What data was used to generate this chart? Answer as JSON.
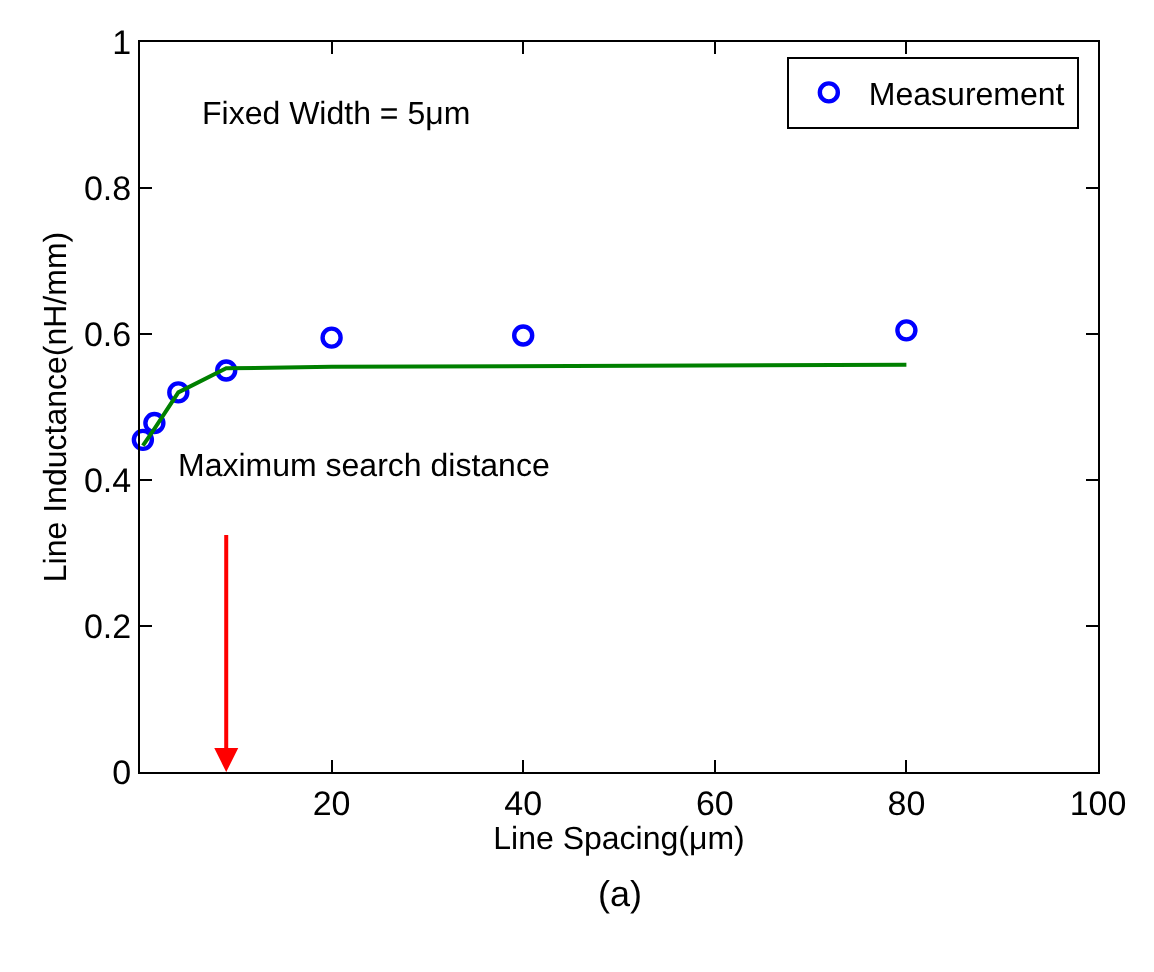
{
  "chart_data": {
    "type": "scatter",
    "xlabel": "Line Spacing(μm)",
    "ylabel": "Line Inductance(nH/mm)",
    "xlim": [
      0,
      100
    ],
    "xticks": [
      20,
      40,
      60,
      80,
      100
    ],
    "ylim": [
      0,
      1
    ],
    "yticks": [
      0,
      0.2,
      0.4,
      0.6,
      0.8,
      1
    ],
    "legend": "top right",
    "series": [
      {
        "name": "Measurement",
        "marker": "circle",
        "color": "#0000ff",
        "x": [
          0.3,
          1.5,
          4,
          9,
          20,
          40,
          80
        ],
        "values": [
          0.455,
          0.478,
          0.52,
          0.55,
          0.595,
          0.598,
          0.605
        ]
      },
      {
        "type": "line",
        "marker": "none",
        "line_style": "solid",
        "color": "#008000",
        "x": [
          0.3,
          1.5,
          4,
          9,
          20,
          80
        ],
        "values": [
          0.447,
          0.47,
          0.52,
          0.553,
          0.555,
          0.558
        ]
      }
    ],
    "annotations": [
      "Fixed Width = 5μm",
      "Maximum search distance",
      "(a)"
    ]
  }
}
